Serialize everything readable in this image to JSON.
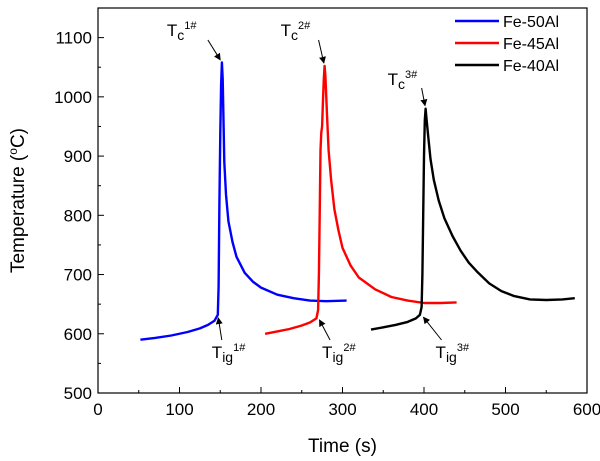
{
  "chart_data": {
    "type": "line",
    "xlabel": "Time (s)",
    "ylabel_parts": {
      "pre": "Temperature (",
      "sup": "o",
      "post": "C)"
    },
    "xlim": [
      0,
      600
    ],
    "ylim": [
      500,
      1150
    ],
    "xticks": [
      0,
      100,
      200,
      300,
      400,
      500,
      600
    ],
    "yticks": [
      500,
      600,
      700,
      800,
      900,
      1000,
      1100
    ],
    "grid": false,
    "legend_position": "top-right",
    "series": [
      {
        "name": "Fe-50Al",
        "color": "#0000ff",
        "points": [
          [
            52,
            590
          ],
          [
            70,
            593
          ],
          [
            90,
            597
          ],
          [
            110,
            603
          ],
          [
            125,
            609
          ],
          [
            135,
            615
          ],
          [
            143,
            622
          ],
          [
            147,
            632
          ],
          [
            148,
            680
          ],
          [
            149,
            820
          ],
          [
            150,
            940
          ],
          [
            151,
            1020
          ],
          [
            152,
            1058
          ],
          [
            153,
            1030
          ],
          [
            154,
            960
          ],
          [
            155,
            890
          ],
          [
            157,
            835
          ],
          [
            160,
            790
          ],
          [
            165,
            755
          ],
          [
            170,
            730
          ],
          [
            180,
            703
          ],
          [
            190,
            688
          ],
          [
            200,
            678
          ],
          [
            220,
            666
          ],
          [
            240,
            660
          ],
          [
            260,
            656
          ],
          [
            280,
            655
          ],
          [
            305,
            656
          ]
        ]
      },
      {
        "name": "Fe-45Al",
        "color": "#ff0000",
        "points": [
          [
            205,
            600
          ],
          [
            220,
            604
          ],
          [
            235,
            608
          ],
          [
            250,
            614
          ],
          [
            260,
            619
          ],
          [
            268,
            626
          ],
          [
            270,
            640
          ],
          [
            271,
            700
          ],
          [
            272,
            800
          ],
          [
            273,
            910
          ],
          [
            274,
            940
          ],
          [
            275,
            950
          ],
          [
            276,
            990
          ],
          [
            277,
            1030
          ],
          [
            278,
            1052
          ],
          [
            279,
            1035
          ],
          [
            281,
            970
          ],
          [
            283,
            910
          ],
          [
            286,
            860
          ],
          [
            290,
            810
          ],
          [
            295,
            775
          ],
          [
            300,
            745
          ],
          [
            310,
            715
          ],
          [
            320,
            695
          ],
          [
            340,
            675
          ],
          [
            360,
            662
          ],
          [
            380,
            656
          ],
          [
            400,
            652
          ],
          [
            420,
            652
          ],
          [
            440,
            653
          ]
        ]
      },
      {
        "name": "Fe-40Al",
        "color": "#000000",
        "points": [
          [
            335,
            607
          ],
          [
            350,
            611
          ],
          [
            365,
            615
          ],
          [
            380,
            620
          ],
          [
            390,
            626
          ],
          [
            395,
            632
          ],
          [
            397,
            645
          ],
          [
            398,
            700
          ],
          [
            399,
            800
          ],
          [
            400,
            900
          ],
          [
            401,
            960
          ],
          [
            402,
            980
          ],
          [
            403,
            965
          ],
          [
            405,
            935
          ],
          [
            408,
            895
          ],
          [
            412,
            860
          ],
          [
            418,
            825
          ],
          [
            425,
            795
          ],
          [
            435,
            765
          ],
          [
            445,
            740
          ],
          [
            455,
            720
          ],
          [
            465,
            705
          ],
          [
            480,
            685
          ],
          [
            495,
            672
          ],
          [
            510,
            664
          ],
          [
            530,
            658
          ],
          [
            550,
            657
          ],
          [
            570,
            658
          ],
          [
            585,
            660
          ]
        ]
      }
    ],
    "annotations": [
      {
        "base": "T",
        "sub": "c",
        "sup": "1#",
        "target": [
          152,
          1058
        ],
        "side": "top"
      },
      {
        "base": "T",
        "sub": "c",
        "sup": "2#",
        "target": [
          278,
          1052
        ],
        "side": "top"
      },
      {
        "base": "T",
        "sub": "c",
        "sup": "3#",
        "target": [
          402,
          980
        ],
        "side": "top"
      },
      {
        "base": "T",
        "sub": "ig",
        "sup": "1#",
        "target": [
          147,
          632
        ],
        "side": "bottom"
      },
      {
        "base": "T",
        "sub": "ig",
        "sup": "2#",
        "target": [
          270,
          628
        ],
        "side": "bottom"
      },
      {
        "base": "T",
        "sub": "ig",
        "sup": "3#",
        "target": [
          397,
          632
        ],
        "side": "bottom"
      }
    ]
  }
}
